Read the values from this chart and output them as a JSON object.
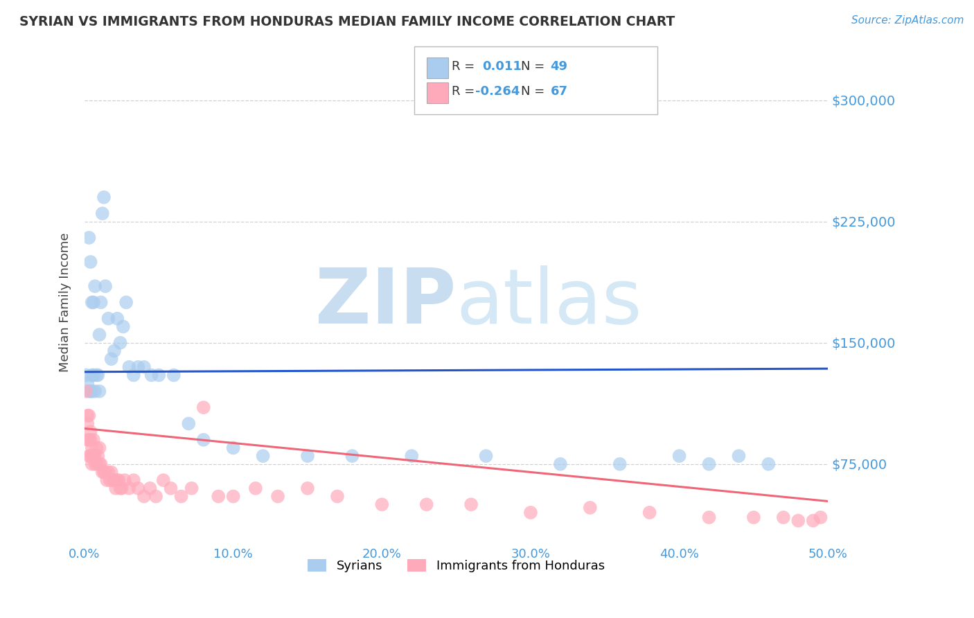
{
  "title": "SYRIAN VS IMMIGRANTS FROM HONDURAS MEDIAN FAMILY INCOME CORRELATION CHART",
  "source": "Source: ZipAtlas.com",
  "ylabel": "Median Family Income",
  "xlim": [
    0.0,
    0.5
  ],
  "ylim": [
    25000,
    325000
  ],
  "yticks": [
    75000,
    150000,
    225000,
    300000
  ],
  "ytick_labels": [
    "$75,000",
    "$150,000",
    "$225,000",
    "$300,000"
  ],
  "xtick_labels": [
    "0.0%",
    "10.0%",
    "20.0%",
    "30.0%",
    "40.0%",
    "50.0%"
  ],
  "xticks": [
    0.0,
    0.1,
    0.2,
    0.3,
    0.4,
    0.5
  ],
  "background_color": "#ffffff",
  "grid_color": "#cccccc",
  "title_color": "#333333",
  "axis_label_color": "#444444",
  "tick_label_color": "#4499dd",
  "watermark_zip": "ZIP",
  "watermark_atlas": "atlas",
  "watermark_color": "#e0e8f0",
  "legend_r1": "R =  0.011",
  "legend_n1": "N = 49",
  "legend_r2": "R = -0.264",
  "legend_n2": "N = 67",
  "syrian_color": "#aaccee",
  "honduras_color": "#ffaabb",
  "syrian_line_color": "#2255cc",
  "honduras_line_color": "#ee6677",
  "syrian_scatter_x": [
    0.001,
    0.002,
    0.003,
    0.003,
    0.004,
    0.004,
    0.005,
    0.005,
    0.005,
    0.006,
    0.006,
    0.007,
    0.007,
    0.008,
    0.009,
    0.01,
    0.01,
    0.011,
    0.012,
    0.013,
    0.014,
    0.016,
    0.018,
    0.02,
    0.022,
    0.024,
    0.026,
    0.028,
    0.03,
    0.033,
    0.036,
    0.04,
    0.045,
    0.05,
    0.06,
    0.07,
    0.08,
    0.1,
    0.12,
    0.15,
    0.18,
    0.22,
    0.27,
    0.32,
    0.36,
    0.4,
    0.42,
    0.44,
    0.46
  ],
  "syrian_scatter_y": [
    130000,
    125000,
    215000,
    120000,
    200000,
    120000,
    175000,
    130000,
    120000,
    175000,
    130000,
    120000,
    185000,
    130000,
    130000,
    155000,
    120000,
    175000,
    230000,
    240000,
    185000,
    165000,
    140000,
    145000,
    165000,
    150000,
    160000,
    175000,
    135000,
    130000,
    135000,
    135000,
    130000,
    130000,
    130000,
    100000,
    90000,
    85000,
    80000,
    80000,
    80000,
    80000,
    80000,
    75000,
    75000,
    80000,
    75000,
    80000,
    75000
  ],
  "honduras_scatter_x": [
    0.001,
    0.002,
    0.002,
    0.003,
    0.003,
    0.004,
    0.004,
    0.005,
    0.005,
    0.006,
    0.006,
    0.007,
    0.007,
    0.008,
    0.008,
    0.009,
    0.01,
    0.01,
    0.011,
    0.012,
    0.013,
    0.014,
    0.015,
    0.016,
    0.017,
    0.018,
    0.019,
    0.02,
    0.021,
    0.022,
    0.023,
    0.024,
    0.025,
    0.027,
    0.03,
    0.033,
    0.036,
    0.04,
    0.044,
    0.048,
    0.053,
    0.058,
    0.065,
    0.072,
    0.08,
    0.09,
    0.1,
    0.115,
    0.13,
    0.15,
    0.17,
    0.2,
    0.23,
    0.26,
    0.3,
    0.34,
    0.38,
    0.42,
    0.45,
    0.47,
    0.48,
    0.49,
    0.495,
    0.002,
    0.003,
    0.004,
    0.005
  ],
  "honduras_scatter_y": [
    120000,
    100000,
    90000,
    80000,
    105000,
    90000,
    95000,
    85000,
    75000,
    90000,
    80000,
    80000,
    75000,
    75000,
    85000,
    80000,
    85000,
    75000,
    75000,
    70000,
    70000,
    70000,
    65000,
    70000,
    65000,
    70000,
    65000,
    65000,
    60000,
    65000,
    65000,
    60000,
    60000,
    65000,
    60000,
    65000,
    60000,
    55000,
    60000,
    55000,
    65000,
    60000,
    55000,
    60000,
    110000,
    55000,
    55000,
    60000,
    55000,
    60000,
    55000,
    50000,
    50000,
    50000,
    45000,
    48000,
    45000,
    42000,
    42000,
    42000,
    40000,
    40000,
    42000,
    105000,
    90000,
    80000,
    80000
  ],
  "syrian_line_x": [
    0.0,
    0.5
  ],
  "syrian_line_y": [
    132000,
    134000
  ],
  "honduras_line_x": [
    0.0,
    0.5
  ],
  "honduras_line_y": [
    97000,
    52000
  ]
}
